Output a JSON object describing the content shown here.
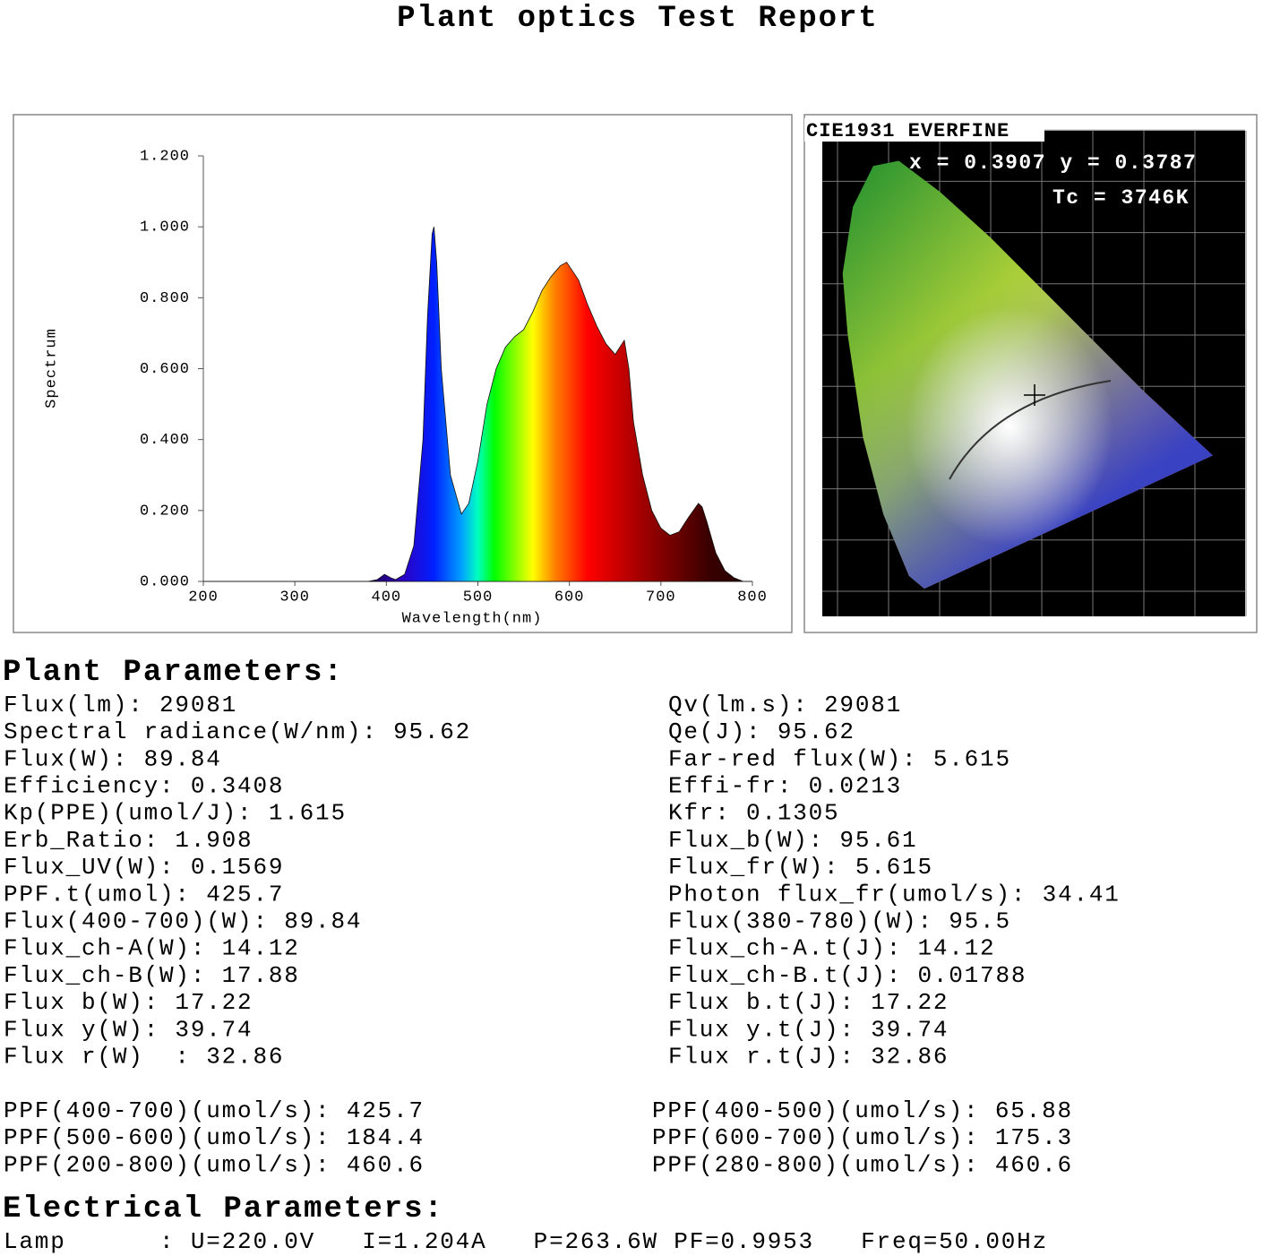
{
  "title": "Plant optics Test Report",
  "chart_data": {
    "type": "area",
    "x_label": "Wavelength(nm)",
    "y_label": "Spectrum",
    "x": [
      200,
      380,
      390,
      398,
      405,
      410,
      420,
      430,
      440,
      445,
      450,
      452,
      455,
      460,
      470,
      482,
      490,
      500,
      510,
      520,
      530,
      540,
      550,
      560,
      570,
      580,
      590,
      597,
      610,
      620,
      630,
      640,
      650,
      655,
      660,
      665,
      670,
      680,
      690,
      700,
      710,
      720,
      730,
      741,
      745,
      750,
      760,
      770,
      780,
      790,
      800
    ],
    "values": [
      0,
      0,
      0.005,
      0.02,
      0.01,
      0.005,
      0.02,
      0.1,
      0.4,
      0.75,
      0.98,
      1.0,
      0.9,
      0.6,
      0.3,
      0.19,
      0.22,
      0.34,
      0.5,
      0.6,
      0.66,
      0.69,
      0.71,
      0.76,
      0.82,
      0.86,
      0.89,
      0.9,
      0.85,
      0.78,
      0.72,
      0.67,
      0.64,
      0.66,
      0.68,
      0.6,
      0.45,
      0.3,
      0.2,
      0.15,
      0.13,
      0.14,
      0.18,
      0.22,
      0.21,
      0.17,
      0.08,
      0.03,
      0.01,
      0,
      0
    ],
    "xlim": [
      200,
      800
    ],
    "xticks": [
      200,
      300,
      400,
      500,
      600,
      700,
      800
    ],
    "ylim": [
      0,
      1.2
    ],
    "yticks": [
      {
        "value": 0,
        "label": "0.000"
      },
      {
        "value": 0.2,
        "label": "0.200"
      },
      {
        "value": 0.4,
        "label": "0.400"
      },
      {
        "value": 0.6,
        "label": "0.600"
      },
      {
        "value": 0.8,
        "label": "0.800"
      },
      {
        "value": 1,
        "label": "1.000"
      },
      {
        "value": 1.2,
        "label": "1.200"
      }
    ]
  },
  "cie": {
    "title": "CIE1931 EVERFINE",
    "coords": "x = 0.3907 y = 0.3787",
    "tc": "Tc = 3746K"
  },
  "plant_parameters": {
    "heading": "Plant Parameters:",
    "left": [
      "Flux(lm): 29081",
      "Spectral radiance(W/nm): 95.62",
      "Flux(W): 89.84",
      "Efficiency: 0.3408",
      "Kp(PPE)(umol/J): 1.615",
      "Erb_Ratio: 1.908",
      "Flux_UV(W): 0.1569",
      "PPF.t(umol): 425.7",
      "Flux(400-700)(W): 89.84",
      "Flux_ch-A(W): 14.12",
      "Flux_ch-B(W): 17.88",
      "Flux b(W): 17.22",
      "Flux y(W): 39.74",
      "Flux r(W)  : 32.86"
    ],
    "right": [
      "Qv(lm.s): 29081",
      "Qe(J): 95.62",
      "Far-red flux(W): 5.615",
      "Effi-fr: 0.0213",
      "Kfr: 0.1305",
      "Flux_b(W): 95.61",
      "Flux_fr(W): 5.615",
      "Photon flux_fr(umol/s): 34.41",
      "Flux(380-780)(W): 95.5",
      "Flux_ch-A.t(J): 14.12",
      "Flux_ch-B.t(J): 0.01788",
      "Flux b.t(J): 17.22",
      "Flux y.t(J): 39.74",
      "Flux r.t(J): 32.86"
    ]
  },
  "ppf": {
    "left": [
      "PPF(400-700)(umol/s): 425.7",
      "PPF(500-600)(umol/s): 184.4",
      "PPF(200-800)(umol/s): 460.6"
    ],
    "right": [
      "PPF(400-500)(umol/s): 65.88",
      "PPF(600-700)(umol/s): 175.3",
      "PPF(280-800)(umol/s): 460.6"
    ]
  },
  "electrical_parameters": {
    "heading": "Electrical Parameters:",
    "lines": [
      "Lamp      : U=220.0V   I=1.204A   P=263.6W PF=0.9953   Freq=50.00Hz"
    ]
  }
}
